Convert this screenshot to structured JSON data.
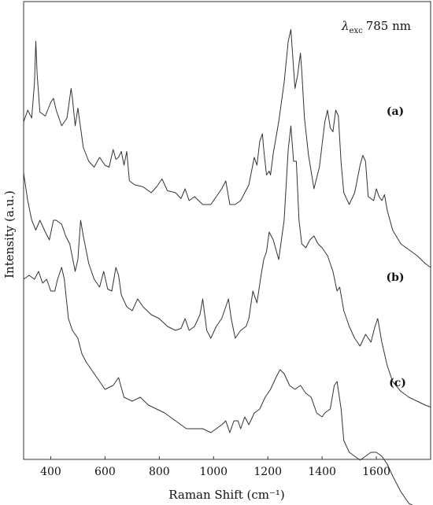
{
  "chart_data": {
    "type": "line",
    "title": "",
    "xlabel": "Raman Shift (cm⁻¹)",
    "ylabel": "Intensity (a.u.)",
    "xlim": [
      300,
      1800
    ],
    "xticks": [
      400,
      600,
      800,
      1000,
      1200,
      1400,
      1600
    ],
    "yticks": [],
    "grid": false,
    "annotation": {
      "symbol": "λ",
      "subscript": "exc",
      "value": "785 nm"
    },
    "series": [
      {
        "name": "(a)",
        "x": [
          300,
          315,
          330,
          340,
          345,
          350,
          360,
          380,
          400,
          410,
          420,
          440,
          460,
          475,
          480,
          490,
          500,
          510,
          520,
          540,
          560,
          580,
          600,
          615,
          630,
          640,
          650,
          660,
          670,
          680,
          690,
          710,
          740,
          770,
          790,
          810,
          830,
          860,
          880,
          895,
          910,
          930,
          960,
          990,
          1010,
          1030,
          1045,
          1060,
          1080,
          1100,
          1130,
          1150,
          1160,
          1170,
          1180,
          1185,
          1195,
          1205,
          1210,
          1220,
          1240,
          1260,
          1275,
          1285,
          1290,
          1300,
          1310,
          1320,
          1325,
          1335,
          1350,
          1370,
          1390,
          1410,
          1420,
          1430,
          1440,
          1450,
          1460,
          1470,
          1480,
          1500,
          1520,
          1540,
          1550,
          1560,
          1570,
          1590,
          1600,
          1610,
          1620,
          1630,
          1640,
          1660,
          1690,
          1720,
          1750,
          1780,
          1800
        ],
        "y": [
          0.5,
          0.56,
          0.52,
          0.7,
          0.91,
          0.74,
          0.55,
          0.53,
          0.6,
          0.62,
          0.56,
          0.48,
          0.52,
          0.67,
          0.62,
          0.48,
          0.57,
          0.47,
          0.37,
          0.3,
          0.27,
          0.32,
          0.28,
          0.27,
          0.36,
          0.31,
          0.32,
          0.35,
          0.28,
          0.35,
          0.2,
          0.18,
          0.17,
          0.14,
          0.17,
          0.21,
          0.15,
          0.14,
          0.11,
          0.16,
          0.1,
          0.12,
          0.08,
          0.08,
          0.12,
          0.16,
          0.2,
          0.08,
          0.08,
          0.1,
          0.18,
          0.32,
          0.28,
          0.4,
          0.44,
          0.36,
          0.23,
          0.25,
          0.23,
          0.34,
          0.5,
          0.7,
          0.91,
          0.97,
          0.87,
          0.67,
          0.74,
          0.85,
          0.76,
          0.52,
          0.33,
          0.16,
          0.27,
          0.5,
          0.56,
          0.47,
          0.45,
          0.56,
          0.53,
          0.29,
          0.14,
          0.08,
          0.14,
          0.28,
          0.33,
          0.3,
          0.12,
          0.1,
          0.16,
          0.12,
          0.1,
          0.13,
          0.05,
          -0.05,
          -0.12,
          -0.15,
          -0.18,
          -0.22,
          -0.24
        ]
      },
      {
        "name": "(b)",
        "x": [
          300,
          315,
          330,
          345,
          360,
          380,
          395,
          410,
          420,
          440,
          455,
          470,
          490,
          500,
          510,
          520,
          540,
          560,
          580,
          595,
          610,
          625,
          640,
          650,
          660,
          680,
          700,
          720,
          740,
          770,
          800,
          830,
          860,
          880,
          895,
          910,
          930,
          950,
          960,
          975,
          990,
          1010,
          1030,
          1045,
          1055,
          1065,
          1080,
          1100,
          1120,
          1130,
          1145,
          1160,
          1175,
          1185,
          1195,
          1205,
          1220,
          1240,
          1260,
          1275,
          1285,
          1295,
          1305,
          1315,
          1325,
          1340,
          1355,
          1370,
          1385,
          1400,
          1420,
          1440,
          1455,
          1465,
          1480,
          1500,
          1520,
          1540,
          1560,
          1580,
          1595,
          1605,
          1620,
          1640,
          1660,
          1690,
          1720,
          1750,
          1780,
          1800
        ],
        "y": [
          0.24,
          0.1,
          0.0,
          -0.05,
          0.0,
          -0.06,
          -0.1,
          0.0,
          0.0,
          -0.02,
          -0.08,
          -0.12,
          -0.26,
          -0.2,
          0.0,
          -0.08,
          -0.22,
          -0.3,
          -0.34,
          -0.26,
          -0.35,
          -0.36,
          -0.24,
          -0.28,
          -0.38,
          -0.44,
          -0.46,
          -0.4,
          -0.44,
          -0.48,
          -0.5,
          -0.54,
          -0.56,
          -0.55,
          -0.5,
          -0.56,
          -0.54,
          -0.48,
          -0.4,
          -0.56,
          -0.6,
          -0.54,
          -0.5,
          -0.44,
          -0.4,
          -0.5,
          -0.6,
          -0.56,
          -0.54,
          -0.5,
          -0.36,
          -0.42,
          -0.28,
          -0.2,
          -0.16,
          -0.06,
          -0.1,
          -0.2,
          0.0,
          0.36,
          0.48,
          0.3,
          0.3,
          0.0,
          -0.12,
          -0.14,
          -0.1,
          -0.08,
          -0.12,
          -0.14,
          -0.18,
          -0.26,
          -0.36,
          -0.34,
          -0.46,
          -0.54,
          -0.6,
          -0.64,
          -0.58,
          -0.62,
          -0.54,
          -0.5,
          -0.62,
          -0.74,
          -0.82,
          -0.87,
          -0.9,
          -0.92,
          -0.94,
          -0.95
        ]
      },
      {
        "name": "(c)",
        "x": [
          300,
          320,
          340,
          355,
          370,
          385,
          400,
          415,
          425,
          440,
          450,
          465,
          480,
          500,
          515,
          530,
          560,
          580,
          600,
          630,
          650,
          670,
          700,
          730,
          760,
          790,
          820,
          860,
          900,
          930,
          960,
          990,
          1010,
          1030,
          1045,
          1060,
          1075,
          1090,
          1100,
          1115,
          1130,
          1150,
          1170,
          1190,
          1210,
          1230,
          1245,
          1260,
          1280,
          1300,
          1320,
          1340,
          1360,
          1380,
          1400,
          1410,
          1430,
          1445,
          1455,
          1470,
          1480,
          1500,
          1520,
          1540,
          1560,
          1580,
          1600,
          1620,
          1640,
          1660,
          1690,
          1720,
          1750,
          1780,
          1800
        ],
        "y": [
          -0.3,
          -0.28,
          -0.3,
          -0.26,
          -0.32,
          -0.3,
          -0.36,
          -0.36,
          -0.3,
          -0.24,
          -0.3,
          -0.5,
          -0.56,
          -0.6,
          -0.68,
          -0.72,
          -0.78,
          -0.82,
          -0.86,
          -0.84,
          -0.8,
          -0.9,
          -0.92,
          -0.9,
          -0.94,
          -0.96,
          -0.98,
          -1.02,
          -1.06,
          -1.06,
          -1.06,
          -1.08,
          -1.06,
          -1.04,
          -1.02,
          -1.08,
          -1.02,
          -1.02,
          -1.06,
          -1.0,
          -1.04,
          -0.98,
          -0.96,
          -0.9,
          -0.86,
          -0.8,
          -0.76,
          -0.78,
          -0.84,
          -0.86,
          -0.84,
          -0.88,
          -0.9,
          -0.98,
          -1.0,
          -0.98,
          -0.96,
          -0.84,
          -0.82,
          -0.96,
          -1.12,
          -1.18,
          -1.2,
          -1.22,
          -1.2,
          -1.18,
          -1.18,
          -1.2,
          -1.24,
          -1.3,
          -1.38,
          -1.44,
          -1.46,
          -1.48,
          -1.5
        ]
      }
    ]
  }
}
